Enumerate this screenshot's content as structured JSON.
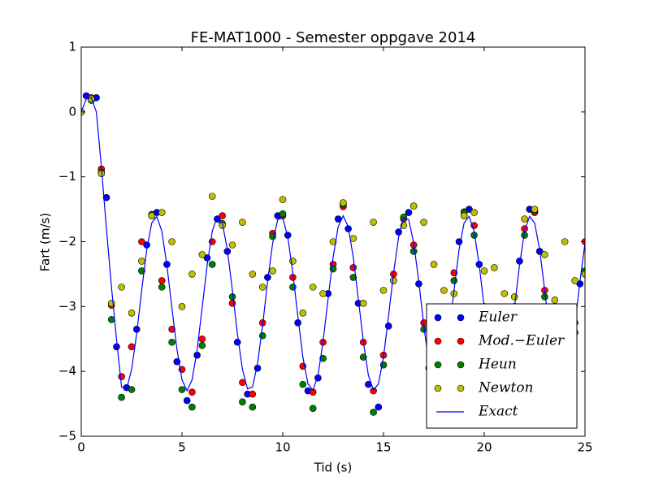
{
  "chart_data": {
    "type": "line",
    "title": "FE-MAT1000 - Semester oppgave 2014",
    "x_label": "Tid (s)",
    "y_label": "Fart (m/s)",
    "xlim": [
      0,
      25
    ],
    "ylim": [
      -5,
      1
    ],
    "xticks": [
      0,
      5,
      10,
      15,
      20,
      25
    ],
    "yticks": [
      {
        "value": -5,
        "label": "−5"
      },
      {
        "value": -4,
        "label": "−4"
      },
      {
        "value": -3,
        "label": "−3"
      },
      {
        "value": -2,
        "label": "−2"
      },
      {
        "value": -1,
        "label": "−1"
      },
      0,
      1
    ],
    "legend": "lower right",
    "series": [
      {
        "name": "Euler",
        "color": "#0000ff",
        "style": "marker",
        "x": [
          0.25,
          0.75,
          1.25,
          1.75,
          2.25,
          2.75,
          3.25,
          3.75,
          4.25,
          4.75,
          5.25,
          5.75,
          6.25,
          6.75,
          7.25,
          7.75,
          8.25,
          8.75,
          9.25,
          9.75,
          10.25,
          10.75,
          11.25,
          11.75,
          12.25,
          12.75,
          13.25,
          13.75,
          14.25,
          14.75,
          15.25,
          15.75,
          16.25,
          16.75,
          17.25,
          17.75,
          18.25,
          18.75,
          19.25,
          19.75,
          20.25,
          20.75,
          21.25,
          21.75,
          22.25,
          22.75,
          23.25,
          23.75,
          24.25,
          24.75
        ],
        "values": [
          0.25,
          0.22,
          -1.32,
          -3.62,
          -4.25,
          -3.35,
          -2.05,
          -1.55,
          -2.35,
          -3.85,
          -4.45,
          -3.75,
          -2.25,
          -1.65,
          -2.15,
          -3.55,
          -4.35,
          -3.95,
          -2.55,
          -1.6,
          -1.9,
          -3.25,
          -4.3,
          -4.1,
          -2.8,
          -1.65,
          -1.8,
          -2.95,
          -4.2,
          -4.55,
          -3.3,
          -1.85,
          -1.55,
          -2.65,
          -3.95,
          -4.4,
          -3.4,
          -2.0,
          -1.5,
          -2.35,
          -3.75,
          -4.4,
          -3.65,
          -2.3,
          -1.5,
          -2.15,
          -3.55,
          -4.3,
          -3.9,
          -2.65
        ]
      },
      {
        "name": "Mod.−Euler",
        "color": "#ff0000",
        "style": "marker",
        "x": [
          0,
          0.5,
          1,
          1.5,
          2,
          2.5,
          3,
          3.5,
          4,
          4.5,
          5,
          5.5,
          6,
          6.5,
          7,
          7.5,
          8,
          8.5,
          9,
          9.5,
          10,
          10.5,
          11,
          11.5,
          12,
          12.5,
          13,
          13.5,
          14,
          14.5,
          15,
          15.5,
          16,
          16.5,
          17,
          17.5,
          18,
          18.5,
          19,
          19.5,
          20,
          20.5,
          21,
          21.5,
          22,
          22.5,
          23,
          23.5,
          24,
          24.5,
          25
        ],
        "values": [
          0,
          0.22,
          -0.88,
          -2.98,
          -4.08,
          -3.62,
          -2.0,
          -1.6,
          -2.6,
          -3.35,
          -3.97,
          -4.32,
          -3.5,
          -2.0,
          -1.6,
          -2.95,
          -4.17,
          -4.35,
          -3.25,
          -1.87,
          -1.6,
          -2.55,
          -3.92,
          -4.32,
          -3.55,
          -2.35,
          -1.46,
          -2.4,
          -3.55,
          -4.3,
          -3.75,
          -2.5,
          -1.65,
          -2.05,
          -3.25,
          -4.2,
          -3.7,
          -2.48,
          -1.54,
          -1.75,
          -3.0,
          -4.12,
          -4.1,
          -3.0,
          -1.8,
          -1.55,
          -2.75,
          -3.9,
          -4.2,
          -3.25,
          -2.0
        ]
      },
      {
        "name": "Heun",
        "color": "#008000",
        "style": "marker",
        "x": [
          0,
          0.5,
          1,
          1.5,
          2,
          2.5,
          3,
          3.5,
          4,
          4.5,
          5,
          5.5,
          6,
          6.5,
          7,
          7.5,
          8,
          8.5,
          9,
          9.5,
          10,
          10.5,
          11,
          11.5,
          12,
          12.5,
          13,
          13.5,
          14,
          14.5,
          15,
          15.5,
          16,
          16.5,
          17,
          17.5,
          18,
          18.5,
          19,
          19.5,
          20,
          20.5,
          21,
          21.5,
          22,
          22.5,
          23,
          23.5,
          24,
          24.5,
          25
        ],
        "values": [
          0,
          0.18,
          -0.93,
          -3.2,
          -4.4,
          -4.28,
          -2.45,
          -1.58,
          -2.7,
          -3.55,
          -4.28,
          -4.55,
          -3.6,
          -2.35,
          -1.72,
          -2.85,
          -4.47,
          -4.55,
          -3.45,
          -1.92,
          -1.57,
          -2.7,
          -4.2,
          -4.57,
          -3.8,
          -2.42,
          -1.42,
          -2.55,
          -3.78,
          -4.63,
          -3.9,
          -2.6,
          -1.62,
          -2.15,
          -3.35,
          -4.35,
          -3.85,
          -2.6,
          -1.55,
          -1.9,
          -3.1,
          -4.3,
          -4.2,
          -3.1,
          -1.9,
          -1.52,
          -2.85,
          -4.05,
          -4.35,
          -3.4,
          -2.45
        ]
      },
      {
        "name": "Newton",
        "color": "#bfbf00",
        "style": "marker",
        "x": [
          0,
          0.5,
          1,
          1.5,
          2,
          2.5,
          3,
          3.5,
          4,
          4.5,
          5,
          5.5,
          6,
          6.5,
          7,
          7.5,
          8,
          8.5,
          9,
          9.5,
          10,
          10.5,
          11,
          11.5,
          12,
          12.5,
          13,
          13.5,
          14,
          14.5,
          15,
          15.5,
          16,
          16.5,
          17,
          17.5,
          18,
          18.5,
          19,
          19.5,
          20,
          20.5,
          21,
          21.5,
          22,
          22.5,
          23,
          23.5,
          24,
          24.5,
          25
        ],
        "values": [
          0,
          0.2,
          -0.95,
          -2.95,
          -2.7,
          -3.1,
          -2.3,
          -1.6,
          -1.55,
          -2.0,
          -3.0,
          -2.5,
          -2.2,
          -1.3,
          -1.75,
          -2.05,
          -1.7,
          -2.5,
          -2.7,
          -2.45,
          -1.35,
          -2.3,
          -3.1,
          -2.7,
          -2.8,
          -2.0,
          -1.4,
          -1.95,
          -2.95,
          -1.7,
          -2.75,
          -2.6,
          -1.75,
          -1.45,
          -1.7,
          -2.35,
          -2.75,
          -2.8,
          -1.6,
          -1.55,
          -2.45,
          -2.4,
          -2.8,
          -2.85,
          -1.65,
          -1.5,
          -2.2,
          -2.9,
          -2.0,
          -2.6,
          -2.5
        ]
      },
      {
        "name": "Exact",
        "color": "#0000ff",
        "style": "line",
        "x": [
          0,
          0.25,
          0.5,
          0.75,
          1,
          1.25,
          1.5,
          1.75,
          2,
          2.25,
          2.5,
          2.75,
          3,
          3.25,
          3.5,
          3.75,
          4,
          4.25,
          4.5,
          4.75,
          5,
          5.25,
          5.5,
          5.75,
          6,
          6.25,
          6.5,
          6.75,
          7,
          7.25,
          7.5,
          7.75,
          8,
          8.25,
          8.5,
          8.75,
          9,
          9.25,
          9.5,
          9.75,
          10,
          10.25,
          10.5,
          10.75,
          11,
          11.25,
          11.5,
          11.75,
          12,
          12.25,
          12.5,
          12.75,
          13,
          13.25,
          13.5,
          13.75,
          14,
          14.25,
          14.5,
          14.75,
          15,
          15.25,
          15.5,
          15.75,
          16,
          16.25,
          16.5,
          16.75,
          17,
          17.25,
          17.5,
          17.75,
          18,
          18.25,
          18.5,
          18.75,
          19,
          19.25,
          19.5,
          19.75,
          20,
          20.25,
          20.5,
          20.75,
          21,
          21.25,
          21.5,
          21.75,
          22,
          22.25,
          22.5,
          22.75,
          23,
          23.25,
          23.5,
          23.75,
          24,
          24.25,
          24.5,
          24.75,
          25
        ],
        "values": [
          0,
          0.2,
          0.22,
          0.0,
          -0.85,
          -1.8,
          -2.7,
          -3.5,
          -4.24,
          -4.27,
          -3.97,
          -3.42,
          -2.75,
          -2.12,
          -1.71,
          -1.61,
          -1.84,
          -2.36,
          -3.02,
          -3.66,
          -4.13,
          -4.3,
          -4.13,
          -3.67,
          -3.02,
          -2.36,
          -1.84,
          -1.61,
          -1.71,
          -2.12,
          -2.75,
          -3.42,
          -3.97,
          -4.27,
          -4.24,
          -3.88,
          -3.29,
          -2.61,
          -2.02,
          -1.66,
          -1.63,
          -1.93,
          -2.48,
          -3.15,
          -3.78,
          -4.19,
          -4.29,
          -4.06,
          -3.54,
          -2.88,
          -2.24,
          -1.77,
          -1.6,
          -1.77,
          -2.24,
          -2.88,
          -3.54,
          -4.06,
          -4.29,
          -4.19,
          -3.78,
          -3.15,
          -2.48,
          -1.93,
          -1.63,
          -1.66,
          -2.02,
          -2.61,
          -3.29,
          -3.88,
          -4.24,
          -4.27,
          -3.97,
          -3.42,
          -2.75,
          -2.12,
          -1.71,
          -1.61,
          -1.84,
          -2.36,
          -3.02,
          -3.67,
          -4.13,
          -4.3,
          -4.13,
          -3.66,
          -3.02,
          -2.36,
          -1.84,
          -1.61,
          -1.71,
          -2.12,
          -2.75,
          -3.42,
          -3.97,
          -4.27,
          -4.24,
          -3.88,
          -3.29,
          -2.61,
          -2.02
        ]
      }
    ]
  }
}
